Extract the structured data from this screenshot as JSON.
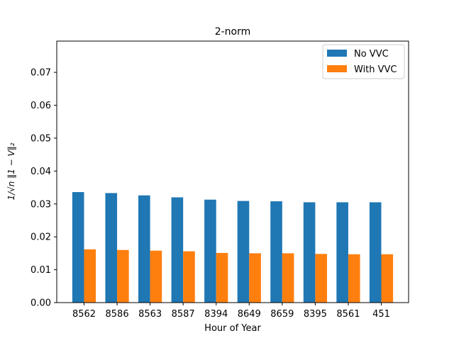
{
  "chart_data": {
    "type": "bar",
    "title": "2-norm",
    "xlabel": "Hour of Year",
    "ylabel": "1/√n ‖1 − V‖₂",
    "categories": [
      "8562",
      "8586",
      "8563",
      "8587",
      "8394",
      "8649",
      "8659",
      "8395",
      "8561",
      "451"
    ],
    "series": [
      {
        "name": "No VVC",
        "color": "#1f77b4",
        "values": [
          0.0336,
          0.0333,
          0.0326,
          0.032,
          0.0313,
          0.0309,
          0.0308,
          0.0305,
          0.0305,
          0.0305
        ]
      },
      {
        "name": "With VVC",
        "color": "#ff7f0e",
        "values": [
          0.0162,
          0.016,
          0.0158,
          0.0156,
          0.0151,
          0.015,
          0.015,
          0.0148,
          0.0147,
          0.0147
        ]
      }
    ],
    "ylim": [
      0,
      0.0795
    ],
    "yticks": [
      "0.00",
      "0.01",
      "0.02",
      "0.03",
      "0.04",
      "0.05",
      "0.06",
      "0.07"
    ],
    "legend_position": "upper right",
    "grid": false
  }
}
